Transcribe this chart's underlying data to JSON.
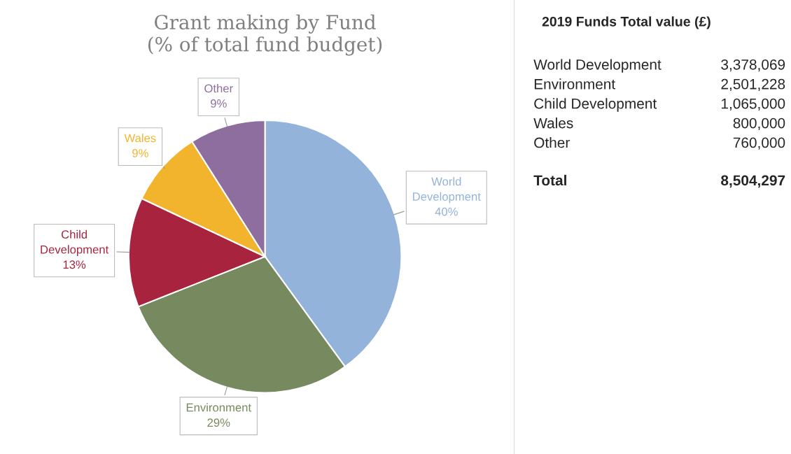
{
  "chart_data": [
    {
      "type": "pie",
      "title": "Grant making by Fund\n(% of total fund budget)",
      "categories": [
        "World Development",
        "Environment",
        "Child Development",
        "Wales",
        "Other"
      ],
      "values": [
        40,
        29,
        13,
        9,
        9
      ],
      "colors": [
        "#93b3da",
        "#76895f",
        "#a8233d",
        "#f2b42c",
        "#8e6e9f"
      ],
      "value_labels": [
        "40%",
        "29%",
        "13%",
        "9%",
        "9%"
      ]
    },
    {
      "type": "other",
      "title": "2019 Funds Total value (£)",
      "annotations": [
        "World Development",
        "3,378,069",
        "Environment",
        "2,501,228",
        "Child Development",
        "1,065,000",
        "Wales",
        "800,000",
        "Other",
        "760,000",
        "Total",
        "8,504,297"
      ]
    }
  ]
}
